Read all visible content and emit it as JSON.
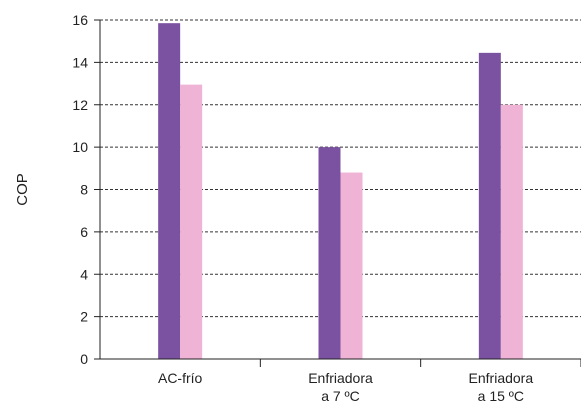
{
  "chart_data": {
    "type": "bar",
    "title": "",
    "xlabel": "",
    "ylabel": "COP",
    "ylim": [
      0,
      16
    ],
    "yticks": [
      0,
      2,
      4,
      6,
      8,
      10,
      12,
      14,
      16
    ],
    "grid": true,
    "legend": "none",
    "categories": [
      "AC-frío",
      "Enfriadora\na 7 ºC",
      "Enfriadora\na 15 ºC"
    ],
    "series": [
      {
        "values": [
          15.85,
          10.0,
          14.45
        ],
        "color": "#7b52a1"
      },
      {
        "values": [
          12.95,
          8.8,
          12.0
        ],
        "color": "#efb3d6"
      }
    ]
  }
}
